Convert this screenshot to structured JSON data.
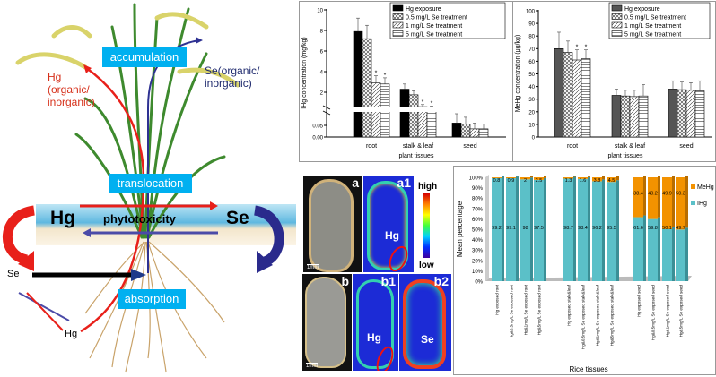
{
  "diagram": {
    "accumulation": "accumulation",
    "translocation": "translocation",
    "absorption": "absorption",
    "hg_species": "Hg (organic/ inorganic)",
    "hg_line1": "Hg",
    "hg_line2": "(organic/",
    "hg_line3": "inorganic)",
    "se_line1": "Se(organic/",
    "se_line2": "inorganic)",
    "hg_big": "Hg",
    "se_big": "Se",
    "phytotoxicity": "phytotoxicity",
    "se_small": "Se",
    "hg_small": "Hg",
    "colors": {
      "tag": "#00b0f0",
      "hg": "#e8201a",
      "se": "#2e3192"
    }
  },
  "images": {
    "a": "a",
    "a1": "a1",
    "b": "b",
    "b1": "b1",
    "b2": "b2",
    "hg_a1": "Hg",
    "hg_b1": "Hg",
    "se_b2": "Se",
    "scale_a": "1mm",
    "scale_b": "1mm",
    "colorbar_high": "high",
    "colorbar_low": "low"
  },
  "chart_data": [
    {
      "type": "bar",
      "ylabel": "IHg concentration (mg/kg)",
      "xlabel": "plant tissues",
      "categories": [
        "root",
        "stalk & leaf",
        "seed"
      ],
      "legend": [
        "Hg exposure",
        "0.5 mg/L Se treatment",
        "1 mg/L Se treatment",
        "5 mg/L Se treatment"
      ],
      "upper_ticks": [
        "2",
        "4",
        "6",
        "8",
        "10"
      ],
      "lower_ticks": [
        "0.00",
        "0.05"
      ],
      "ylim_upper": [
        0,
        10
      ],
      "ylim_lower": [
        0,
        0.1
      ],
      "series": [
        {
          "name": "Hg exposure",
          "values": [
            8.1,
            2.5,
            0.06
          ],
          "errors": [
            1.3,
            0.5,
            0.04
          ]
        },
        {
          "name": "0.5 mg/L Se treatment",
          "values": [
            7.4,
            1.95,
            0.055
          ],
          "errors": [
            1.3,
            0.4,
            0.03
          ]
        },
        {
          "name": "1 mg/L Se treatment",
          "values": [
            3.1,
            0.8,
            0.035
          ],
          "errors": [
            0.7,
            0.2,
            0.025
          ]
        },
        {
          "name": "5 mg/L Se treatment",
          "values": [
            3.0,
            0.65,
            0.035
          ],
          "errors": [
            0.6,
            0.2,
            0.02
          ]
        }
      ],
      "significance": "*"
    },
    {
      "type": "bar",
      "ylabel": "MeHg concentration (μg/kg)",
      "xlabel": "plant tissues",
      "categories": [
        "root",
        "stalk & leaf",
        "seed"
      ],
      "legend": [
        "Hg exposure",
        "0.5 mg/L Se treatment",
        "1 mg/L Se treatment",
        "5 mg/L Se treatment"
      ],
      "ticks": [
        "0",
        "10",
        "20",
        "30",
        "40",
        "50",
        "60",
        "70",
        "80",
        "90",
        "100"
      ],
      "ylim": [
        0,
        100
      ],
      "series": [
        {
          "name": "Hg exposure",
          "values": [
            70,
            33,
            38
          ],
          "errors": [
            13,
            5,
            6.5
          ]
        },
        {
          "name": "0.5 mg/L Se treatment",
          "values": [
            67,
            32.5,
            37.5
          ],
          "errors": [
            9,
            4.5,
            6
          ]
        },
        {
          "name": "1 mg/L Se treatment",
          "values": [
            61,
            32,
            37
          ],
          "errors": [
            8,
            5,
            6
          ]
        },
        {
          "name": "5 mg/L Se treatment",
          "values": [
            62,
            32.5,
            36.5
          ],
          "errors": [
            7,
            9,
            8
          ]
        }
      ],
      "significance": "*"
    },
    {
      "type": "bar",
      "stacked": true,
      "ylabel": "Mean percentage",
      "xlabel": "Rice tissues",
      "ticks": [
        "0%",
        "10%",
        "20%",
        "30%",
        "40%",
        "50%",
        "60%",
        "70%",
        "80%",
        "90%",
        "100%"
      ],
      "ylim": [
        0,
        100
      ],
      "categories": [
        "Hg exposed root",
        "Hg&0.5mg/L Se exposed root",
        "Hg&1mg/L Se exposed root",
        "Hg&5mg/L Se exposed root",
        "Hg exposed stalk&leaf",
        "Hg&0.5mg/L Se exposed stalk&leaf",
        "Hg&1mg/L Se exposed stalk&leaf",
        "Hg&5mg/L Se exposed stalk&leaf",
        "Hg exposed seed",
        "Hg&0.5mg/L Se exposed seed",
        "Hg&1mg/L Se exposed seed",
        "Hg&5mg/L Se exposed seed"
      ],
      "series": [
        {
          "name": "IHg",
          "color": "#5bc0c8",
          "values": [
            99.2,
            99.1,
            98,
            97.5,
            98.7,
            98.4,
            96.2,
            95.5,
            61.6,
            59.8,
            50.1,
            49.7
          ]
        },
        {
          "name": "MeHg",
          "color": "#f39200",
          "values": [
            0.8,
            0.9,
            2,
            2.5,
            1.3,
            1.6,
            3.8,
            4.5,
            38.4,
            40.2,
            49.9,
            50.3
          ]
        }
      ],
      "legend": [
        "MeHg",
        "IHg"
      ]
    }
  ]
}
